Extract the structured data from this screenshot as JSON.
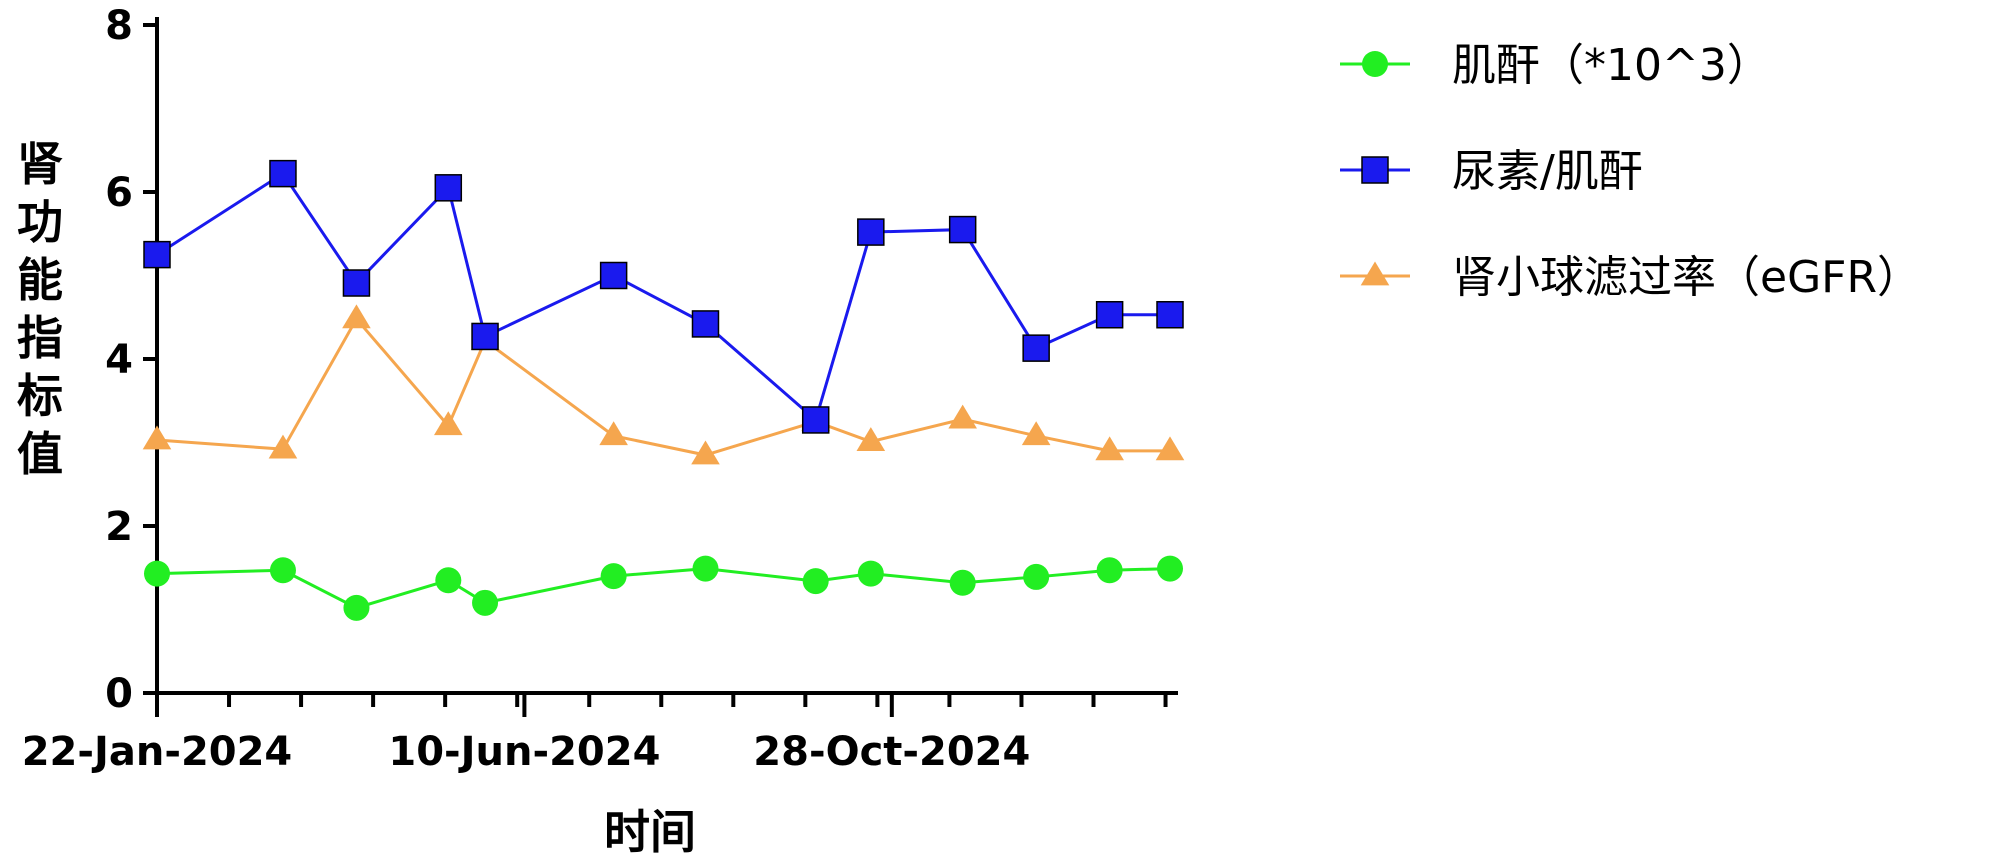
{
  "chart_data": {
    "type": "line",
    "xlabel": "时间",
    "ylabel": "肾功能指标值",
    "ylim": [
      0,
      8
    ],
    "yticks": [
      0,
      2,
      4,
      6,
      8
    ],
    "x_dates": [
      "2024-01-22",
      "2024-03-10",
      "2024-04-07",
      "2024-05-12",
      "2024-05-26",
      "2024-07-14",
      "2024-08-18",
      "2024-09-29",
      "2024-10-20",
      "2024-11-24",
      "2024-12-22",
      "2025-01-19",
      "2025-02-11"
    ],
    "x_tick_labels": [
      {
        "date": "2024-01-22",
        "label": "22-Jan-2024"
      },
      {
        "date": "2024-06-10",
        "label": "10-Jun-2024"
      },
      {
        "date": "2024-10-28",
        "label": "28-Oct-2024"
      }
    ],
    "legend_position": "right",
    "series": [
      {
        "name": "肌酐（*10^3）",
        "color": "#22ee22",
        "marker": "circle",
        "values": [
          1.43,
          1.47,
          1.02,
          1.35,
          1.08,
          1.4,
          1.49,
          1.34,
          1.43,
          1.32,
          1.39,
          1.47,
          1.49
        ]
      },
      {
        "name": "尿素/肌酐",
        "color": "#1a1aee",
        "marker": "square",
        "values": [
          5.25,
          6.22,
          4.91,
          6.05,
          4.27,
          5.0,
          4.42,
          3.27,
          5.52,
          5.55,
          4.13,
          4.53,
          4.53
        ]
      },
      {
        "name": "肾小球滤过率（eGFR）",
        "color": "#f5a64e",
        "marker": "triangle",
        "values": [
          3.03,
          2.92,
          4.48,
          3.2,
          4.22,
          3.08,
          2.85,
          3.25,
          3.01,
          3.28,
          3.08,
          2.9,
          2.9
        ]
      }
    ]
  }
}
